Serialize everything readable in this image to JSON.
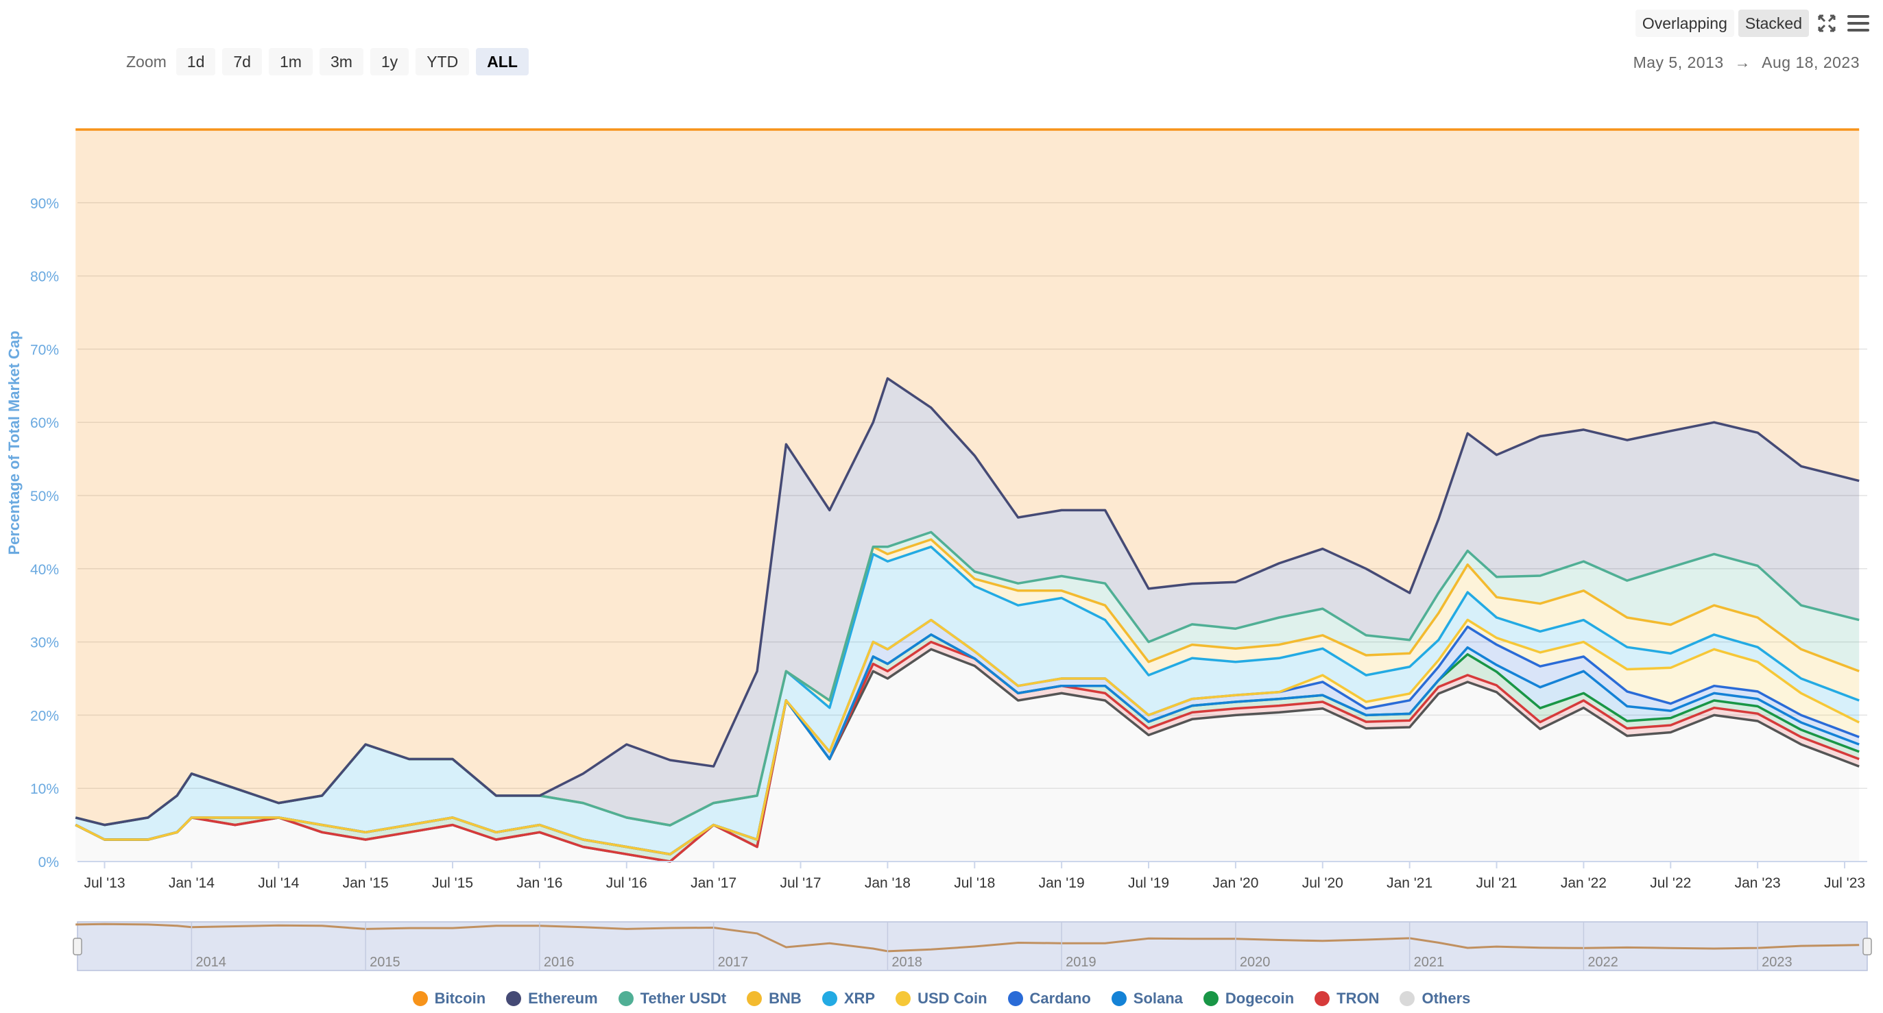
{
  "toolbar": {
    "zoom_label": "Zoom",
    "zoom_options": [
      "1d",
      "7d",
      "1m",
      "3m",
      "1y",
      "YTD",
      "ALL"
    ],
    "zoom_active": "ALL",
    "mode_options": [
      "Overlapping",
      "Stacked"
    ],
    "mode_active": "Stacked",
    "range_from": "May 5, 2013",
    "range_arrow": "→",
    "range_to": "Aug 18, 2023"
  },
  "icons": {
    "fullscreen": "fullscreen-icon",
    "menu": "menu-icon"
  },
  "chart_data": {
    "type": "area",
    "stacking": "percent",
    "ylabel": "Percentage of Total Market Cap",
    "ylim": [
      0,
      100
    ],
    "yticks": [
      "0%",
      "10%",
      "20%",
      "30%",
      "40%",
      "50%",
      "60%",
      "70%",
      "80%",
      "90%"
    ],
    "xticks": [
      "Jul '13",
      "Jan '14",
      "Jul '14",
      "Jan '15",
      "Jul '15",
      "Jan '16",
      "Jul '16",
      "Jan '17",
      "Jul '17",
      "Jan '18",
      "Jul '18",
      "Jan '19",
      "Jul '19",
      "Jan '20",
      "Jul '20",
      "Jan '21",
      "Jul '21",
      "Jan '22",
      "Jul '22",
      "Jan '23",
      "Jul '23"
    ],
    "navigator_labels": [
      "2014",
      "2015",
      "2016",
      "2017",
      "2018",
      "2019",
      "2020",
      "2021",
      "2022",
      "2023"
    ],
    "x": [
      "2013-05",
      "2013-07",
      "2013-10",
      "2013-12",
      "2014-01",
      "2014-04",
      "2014-07",
      "2014-10",
      "2015-01",
      "2015-04",
      "2015-07",
      "2015-10",
      "2016-01",
      "2016-04",
      "2016-07",
      "2016-10",
      "2017-01",
      "2017-04",
      "2017-06",
      "2017-09",
      "2017-12",
      "2018-01",
      "2018-04",
      "2018-07",
      "2018-10",
      "2019-01",
      "2019-04",
      "2019-07",
      "2019-10",
      "2020-01",
      "2020-04",
      "2020-07",
      "2020-10",
      "2021-01",
      "2021-03",
      "2021-05",
      "2021-07",
      "2021-10",
      "2022-01",
      "2022-04",
      "2022-07",
      "2022-10",
      "2023-01",
      "2023-04",
      "2023-08"
    ],
    "legend_position": "bottom",
    "series": [
      {
        "name": "Bitcoin",
        "color": "#f7931a",
        "values": [
          94,
          95,
          94,
          91,
          88,
          90,
          92,
          91,
          84,
          86,
          86,
          91,
          91,
          88,
          84,
          87,
          87,
          74,
          43,
          52,
          40,
          34,
          38,
          45,
          53,
          52,
          52,
          69,
          67,
          68,
          64,
          63,
          66,
          69,
          58,
          44,
          48,
          44,
          41,
          42,
          42,
          40,
          41,
          46,
          48
        ]
      },
      {
        "name": "Ethereum",
        "color": "#454a75",
        "values": [
          0,
          0,
          0,
          0,
          0,
          0,
          0,
          0,
          0,
          0,
          0,
          0,
          0,
          4,
          10,
          9,
          5,
          17,
          31,
          26,
          17,
          23,
          17,
          16,
          9,
          9,
          10,
          8,
          6,
          7,
          8,
          9,
          10,
          7,
          11,
          17,
          18,
          20,
          18,
          19,
          19,
          18,
          18,
          19,
          19
        ]
      },
      {
        "name": "Tether USDt",
        "color": "#50af95",
        "values": [
          0,
          0,
          0,
          0,
          0,
          0,
          0,
          0,
          0,
          0,
          0,
          0,
          0,
          0,
          0,
          0,
          0,
          0,
          0,
          0,
          0,
          1,
          1,
          1,
          1,
          2,
          3,
          3,
          3,
          3,
          4,
          4,
          3,
          2,
          3,
          2,
          3,
          4,
          4,
          5,
          8,
          7,
          7,
          6,
          7
        ]
      },
      {
        "name": "BNB",
        "color": "#f3ba2f",
        "values": [
          0,
          0,
          0,
          0,
          0,
          0,
          0,
          0,
          0,
          0,
          0,
          0,
          0,
          0,
          0,
          0,
          0,
          0,
          0,
          1,
          1,
          1,
          1,
          1,
          2,
          1,
          2,
          2,
          2,
          2,
          2,
          2,
          3,
          2,
          4,
          4,
          3,
          4,
          4,
          4,
          4,
          4,
          4,
          4,
          4
        ]
      },
      {
        "name": "XRP",
        "color": "#23aae3",
        "values": [
          1,
          2,
          3,
          5,
          6,
          4,
          2,
          4,
          12,
          9,
          8,
          5,
          4,
          5,
          4,
          4,
          3,
          6,
          4,
          6,
          12,
          12,
          10,
          9,
          11,
          11,
          8,
          6,
          6,
          5,
          5,
          4,
          4,
          4,
          3,
          4,
          3,
          3,
          3,
          3,
          2,
          2,
          2,
          2,
          3
        ]
      },
      {
        "name": "USD Coin",
        "color": "#f6c737",
        "values": [
          0,
          0,
          0,
          0,
          0,
          0,
          0,
          0,
          0,
          0,
          0,
          0,
          0,
          0,
          0,
          0,
          0,
          0,
          0,
          0,
          0,
          0,
          0,
          0,
          0,
          0,
          0,
          0,
          0,
          0,
          0,
          1,
          1,
          1,
          1,
          1,
          1,
          2,
          2,
          3,
          5,
          5,
          4,
          3,
          2
        ]
      },
      {
        "name": "Cardano",
        "color": "#2a6bd7",
        "values": [
          0,
          0,
          0,
          0,
          0,
          0,
          0,
          0,
          0,
          0,
          0,
          0,
          0,
          0,
          0,
          0,
          0,
          0,
          0,
          1,
          2,
          2,
          2,
          1,
          1,
          1,
          1,
          1,
          1,
          1,
          1,
          2,
          1,
          2,
          2,
          3,
          3,
          3,
          2,
          2,
          1,
          1,
          1,
          1,
          1
        ]
      },
      {
        "name": "Solana",
        "color": "#1482d6",
        "values": [
          0,
          0,
          0,
          0,
          0,
          0,
          0,
          0,
          0,
          0,
          0,
          0,
          0,
          0,
          0,
          0,
          0,
          0,
          0,
          0,
          0,
          0,
          0,
          0,
          0,
          0,
          0,
          0,
          0,
          0,
          0,
          0,
          0,
          0,
          0,
          1,
          1,
          3,
          3,
          2,
          1,
          1,
          1,
          1,
          1
        ]
      },
      {
        "name": "Dogecoin",
        "color": "#199646",
        "values": [
          0,
          0,
          0,
          0,
          0,
          1,
          0,
          1,
          1,
          1,
          1,
          1,
          1,
          1,
          1,
          1,
          0,
          1,
          0,
          0,
          1,
          1,
          1,
          0,
          0,
          0,
          1,
          1,
          1,
          1,
          1,
          1,
          1,
          1,
          1,
          3,
          2,
          2,
          1,
          1,
          1,
          1,
          1,
          1,
          1
        ]
      },
      {
        "name": "TRON",
        "color": "#d63a3a",
        "values": [
          0,
          0,
          0,
          0,
          0,
          0,
          0,
          0,
          0,
          0,
          0,
          0,
          0,
          0,
          0,
          0,
          0,
          0,
          0,
          0,
          1,
          1,
          1,
          1,
          1,
          1,
          1,
          1,
          1,
          1,
          1,
          1,
          1,
          1,
          1,
          1,
          1,
          1,
          1,
          1,
          1,
          1,
          1,
          1,
          1
        ]
      },
      {
        "name": "Others",
        "color": "#d9d9d9",
        "values": [
          5,
          3,
          3,
          4,
          6,
          5,
          6,
          4,
          3,
          4,
          5,
          3,
          4,
          2,
          1,
          0,
          5,
          2,
          22,
          14,
          26,
          25,
          29,
          27,
          22,
          23,
          22,
          19,
          21,
          22,
          22,
          23,
          20,
          20,
          25,
          26,
          25,
          19,
          21,
          17,
          18,
          20,
          19,
          16,
          13
        ]
      }
    ]
  }
}
